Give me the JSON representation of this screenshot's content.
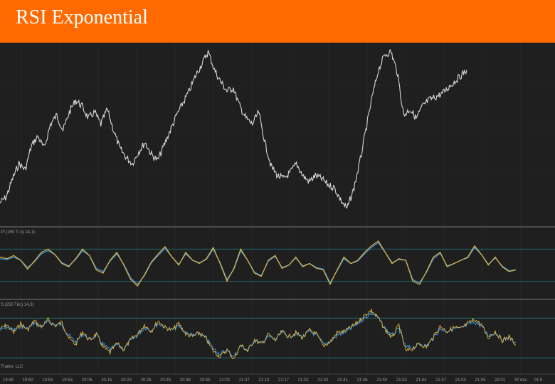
{
  "header": {
    "title": "RSI Exponential"
  },
  "colors": {
    "background": "#1f1f1f",
    "banner": "#ff6a00",
    "grid": "#2e2e2e",
    "price_line": "#d8d8d8",
    "indicator_fast": "#e0b23a",
    "indicator_slow": "#3a8fd6",
    "level_line": "#1f7f86",
    "divider": "#7a7a7a"
  },
  "panels": {
    "rsi_label": "PI (250 Ti n) 14,1)",
    "stoch_label": "S (250 Tdc) 14,3)",
    "copyright": "Trader, LLC"
  },
  "chart_data": [
    {
      "type": "line",
      "panel": "price",
      "series": [
        {
          "values": [
            42,
            44,
            50,
            55,
            53,
            61,
            64,
            60,
            68,
            71,
            66,
            72,
            76,
            74,
            70,
            72,
            68,
            73,
            66,
            60,
            57,
            55,
            59,
            62,
            58,
            56,
            61,
            66,
            71,
            75,
            79,
            84,
            88,
            92,
            86,
            82,
            79,
            80,
            74,
            70,
            68,
            72,
            62,
            54,
            51,
            50,
            52,
            55,
            51,
            49,
            51,
            50,
            48,
            47,
            43,
            40,
            46,
            55,
            66,
            77,
            86,
            91,
            92,
            85,
            71,
            73,
            70,
            74,
            76,
            77,
            78,
            80,
            82,
            84,
            86
          ]
        }
      ],
      "x_range": [
        0,
        100
      ],
      "y_range": [
        35,
        95
      ]
    },
    {
      "type": "line",
      "panel": "rsi",
      "levels": [
        70,
        30
      ],
      "series": [
        {
          "values": [
            60,
            58,
            62,
            56,
            45,
            55,
            66,
            70,
            63,
            52,
            48,
            58,
            70,
            62,
            44,
            40,
            56,
            66,
            50,
            32,
            24,
            38,
            54,
            64,
            73,
            60,
            50,
            66,
            56,
            52,
            58,
            72,
            52,
            30,
            46,
            70,
            56,
            40,
            36,
            56,
            62,
            46,
            50,
            60,
            48,
            52,
            46,
            44,
            26,
            44,
            60,
            52,
            56,
            66,
            74,
            80,
            66,
            52,
            58,
            56,
            30,
            26,
            42,
            60,
            66,
            48,
            52,
            56,
            60,
            74,
            63,
            50,
            60,
            48,
            42,
            44
          ]
        },
        {
          "values": [
            58,
            57,
            60,
            56,
            47,
            54,
            64,
            68,
            63,
            53,
            49,
            57,
            68,
            62,
            46,
            42,
            55,
            64,
            51,
            34,
            26,
            37,
            53,
            62,
            71,
            60,
            51,
            64,
            56,
            53,
            57,
            70,
            53,
            32,
            45,
            68,
            56,
            41,
            37,
            55,
            61,
            47,
            50,
            59,
            49,
            52,
            47,
            45,
            28,
            43,
            58,
            52,
            55,
            64,
            72,
            78,
            66,
            53,
            57,
            56,
            32,
            28,
            41,
            58,
            65,
            49,
            52,
            56,
            59,
            72,
            63,
            51,
            59,
            49,
            43,
            44
          ]
        }
      ],
      "y_range": [
        10,
        95
      ]
    },
    {
      "type": "line",
      "panel": "stochastic",
      "levels": [
        80,
        20
      ],
      "series": [
        {
          "values": [
            64,
            70,
            58,
            72,
            62,
            76,
            66,
            78,
            68,
            74,
            50,
            40,
            60,
            46,
            56,
            36,
            28,
            42,
            32,
            48,
            56,
            70,
            60,
            76,
            66,
            62,
            72,
            56,
            52,
            58,
            48,
            30,
            22,
            32,
            18,
            40,
            30,
            48,
            40,
            56,
            46,
            60,
            52,
            58,
            50,
            62,
            56,
            38,
            44,
            58,
            60,
            66,
            74,
            84,
            92,
            80,
            62,
            50,
            70,
            30,
            34,
            42,
            36,
            52,
            68,
            60,
            66,
            64,
            72,
            78,
            70,
            50,
            60,
            46,
            52,
            40
          ]
        },
        {
          "values": [
            62,
            66,
            62,
            68,
            64,
            72,
            68,
            74,
            70,
            70,
            54,
            44,
            56,
            48,
            54,
            40,
            32,
            40,
            34,
            46,
            54,
            66,
            62,
            72,
            66,
            62,
            68,
            58,
            54,
            56,
            50,
            34,
            26,
            32,
            22,
            38,
            32,
            46,
            42,
            52,
            48,
            58,
            52,
            56,
            52,
            60,
            54,
            42,
            44,
            54,
            58,
            64,
            72,
            80,
            88,
            80,
            64,
            54,
            64,
            36,
            36,
            40,
            38,
            50,
            64,
            60,
            64,
            64,
            70,
            74,
            68,
            54,
            58,
            48,
            50,
            44
          ]
        }
      ],
      "y_range": [
        0,
        105
      ]
    }
  ],
  "time_axis": {
    "ticks": [
      "19:49",
      "19:50",
      "19:54",
      "19:53",
      "20:06",
      "20:15",
      "20:23",
      "20:25",
      "20:35",
      "20:38",
      "20:55",
      "21:02",
      "21:07",
      "21:13",
      "21:17",
      "21:22",
      "21:32",
      "21:41",
      "21:46",
      "21:50",
      "21:52",
      "21:54",
      "21:57",
      "21:03",
      "21:05",
      "22:01",
      "30 déc",
      "01:5"
    ]
  }
}
